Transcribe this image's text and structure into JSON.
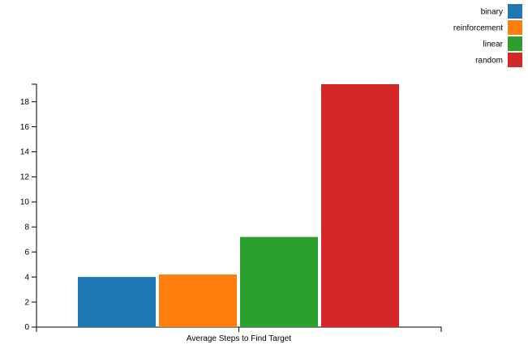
{
  "chart_data": {
    "type": "bar",
    "categories": [
      "Average Steps to Find Target"
    ],
    "series": [
      {
        "name": "binary",
        "values": [
          4.0
        ],
        "color": "#1f77b4"
      },
      {
        "name": "reinforcement",
        "values": [
          4.2
        ],
        "color": "#ff7f0e"
      },
      {
        "name": "linear",
        "values": [
          7.2
        ],
        "color": "#2ca02c"
      },
      {
        "name": "random",
        "values": [
          19.4
        ],
        "color": "#d62728"
      }
    ],
    "ylim": [
      0,
      19.4
    ],
    "yticks": [
      "0",
      "2",
      "4",
      "6",
      "8",
      "10",
      "12",
      "14",
      "16",
      "18"
    ],
    "legend_position": "top-right",
    "grid": false
  }
}
